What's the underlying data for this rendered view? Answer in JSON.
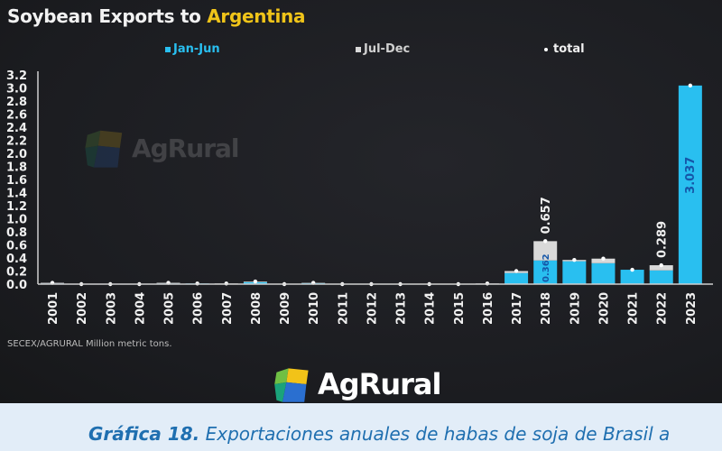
{
  "chart_data": {
    "type": "bar",
    "stacked": true,
    "title": "Soybean Exports to ",
    "title_highlight": "Argentina",
    "categories": [
      "2001",
      "2002",
      "2003",
      "2004",
      "2005",
      "2006",
      "2007",
      "2008",
      "2009",
      "2010",
      "2011",
      "2012",
      "2013",
      "2014",
      "2015",
      "2016",
      "2017",
      "2018",
      "2019",
      "2020",
      "2021",
      "2022",
      "2023"
    ],
    "series": [
      {
        "name": "Jan-Jun",
        "color": "#29bff0",
        "values": [
          0.01,
          0,
          0,
          0,
          0.01,
          0.01,
          0.005,
          0.03,
          0,
          0.015,
          0,
          0,
          0,
          0,
          0,
          0.005,
          0.17,
          0.362,
          0.35,
          0.32,
          0.22,
          0.21,
          3.037
        ]
      },
      {
        "name": "Jul-Dec",
        "color": "#d9d9d9",
        "values": [
          0.01,
          0,
          0,
          0,
          0.01,
          0,
          0.005,
          0.01,
          0,
          0.005,
          0,
          0,
          0,
          0,
          0,
          0.005,
          0.03,
          0.295,
          0.02,
          0.07,
          0,
          0.079,
          0
        ]
      }
    ],
    "total": {
      "name": "total",
      "values": [
        0.02,
        0,
        0,
        0,
        0.02,
        0.01,
        0.01,
        0.04,
        0,
        0.02,
        0,
        0,
        0,
        0,
        0,
        0.01,
        0.2,
        0.657,
        0.37,
        0.39,
        0.22,
        0.289,
        3.037
      ]
    },
    "data_labels": [
      {
        "category": "2018",
        "series": "total",
        "text": "0.657"
      },
      {
        "category": "2018",
        "series": "Jan-Jun",
        "text": "0.362"
      },
      {
        "category": "2022",
        "series": "total",
        "text": "0.289"
      },
      {
        "category": "2023",
        "series": "Jan-Jun",
        "text": "3.037"
      }
    ],
    "yticks": [
      "0.0",
      "0.2",
      "0.4",
      "0.6",
      "0.8",
      "1.0",
      "1.2",
      "1.4",
      "1.6",
      "1.8",
      "2.0",
      "2.2",
      "2.4",
      "2.6",
      "2.8",
      "3.0",
      "3.2"
    ],
    "ylim": [
      0,
      3.2
    ],
    "xlabel": "",
    "ylabel": "",
    "grid": false,
    "legend_position": "top"
  },
  "source": "SECEX/AGRURAL  Million metric tons.",
  "watermark": "AgRural",
  "logo": "AgRural",
  "caption": {
    "label": "Gráfica 18.",
    "text": " Exportaciones anuales de habas de soja de Brasil a"
  }
}
